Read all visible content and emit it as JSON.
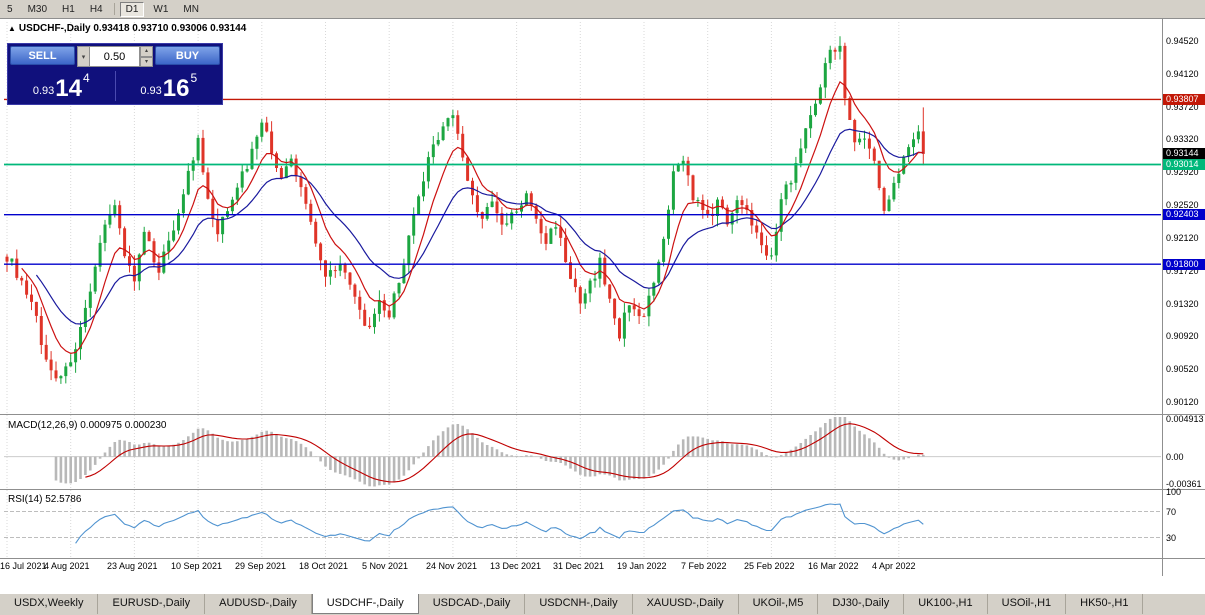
{
  "toolbar": {
    "timeframes": [
      {
        "label": "5"
      },
      {
        "label": "M30"
      },
      {
        "label": "H1"
      },
      {
        "label": "H4"
      },
      {
        "label": "D1"
      },
      {
        "label": "W1"
      },
      {
        "label": "MN"
      }
    ],
    "active_index": 4
  },
  "chart_header": {
    "text": "USDCHF-,Daily 0.93418 0.93710 0.93006 0.93144"
  },
  "trade_panel": {
    "sell_label": "SELL",
    "buy_label": "BUY",
    "volume": "0.50",
    "sell_price_prefix": "0.93",
    "sell_price_big": "14",
    "sell_price_sup": "4",
    "buy_price_prefix": "0.93",
    "buy_price_big": "16",
    "buy_price_sup": "5"
  },
  "chart_data": {
    "type": "candlestick",
    "symbol": "USDCHF-",
    "timeframe": "Daily",
    "ohlc": {
      "open": "0.93418",
      "high": "0.93710",
      "low": "0.93006",
      "close": "0.93144"
    },
    "bars": 188,
    "ylim": [
      0.9,
      0.9475
    ],
    "y_ticks": [
      "0.94520",
      "0.94120",
      "0.93720",
      "0.93320",
      "0.92920",
      "0.92520",
      "0.92120",
      "0.91720",
      "0.91320",
      "0.90920",
      "0.90520",
      "0.90120"
    ],
    "x_tick_labels": [
      "16 Jul 2021",
      "4 Aug 2021",
      "23 Aug 2021",
      "10 Sep 2021",
      "29 Sep 2021",
      "18 Oct 2021",
      "5 Nov 2021",
      "24 Nov 2021",
      "13 Dec 2021",
      "31 Dec 2021",
      "19 Jan 2022",
      "7 Feb 2022",
      "25 Feb 2022",
      "16 Mar 2022",
      "4 Apr 2022"
    ],
    "x_ticks_bar_interval": 13,
    "price_anchors": [
      [
        0,
        0.919
      ],
      [
        2,
        0.917
      ],
      [
        4,
        0.914
      ],
      [
        6,
        0.9115
      ],
      [
        8,
        0.906
      ],
      [
        10,
        0.9045
      ],
      [
        12,
        0.905
      ],
      [
        14,
        0.908
      ],
      [
        17,
        0.914
      ],
      [
        20,
        0.9235
      ],
      [
        22,
        0.925
      ],
      [
        24,
        0.9195
      ],
      [
        26,
        0.916
      ],
      [
        28,
        0.9215
      ],
      [
        31,
        0.9175
      ],
      [
        34,
        0.9225
      ],
      [
        37,
        0.929
      ],
      [
        39,
        0.9328
      ],
      [
        41,
        0.9255
      ],
      [
        43,
        0.9215
      ],
      [
        46,
        0.9265
      ],
      [
        49,
        0.93
      ],
      [
        52,
        0.9358
      ],
      [
        54,
        0.9315
      ],
      [
        56,
        0.9285
      ],
      [
        58,
        0.9305
      ],
      [
        61,
        0.9255
      ],
      [
        63,
        0.921
      ],
      [
        65,
        0.9165
      ],
      [
        68,
        0.9185
      ],
      [
        71,
        0.9135
      ],
      [
        74,
        0.9098
      ],
      [
        76,
        0.913
      ],
      [
        78,
        0.9118
      ],
      [
        80,
        0.916
      ],
      [
        83,
        0.9235
      ],
      [
        86,
        0.9305
      ],
      [
        89,
        0.9352
      ],
      [
        91,
        0.9362
      ],
      [
        93,
        0.931
      ],
      [
        95,
        0.9262
      ],
      [
        97,
        0.9235
      ],
      [
        99,
        0.9255
      ],
      [
        101,
        0.9225
      ],
      [
        104,
        0.9245
      ],
      [
        106,
        0.9262
      ],
      [
        108,
        0.9235
      ],
      [
        110,
        0.9205
      ],
      [
        112,
        0.9232
      ],
      [
        114,
        0.9185
      ],
      [
        117,
        0.9128
      ],
      [
        119,
        0.9155
      ],
      [
        121,
        0.9182
      ],
      [
        123,
        0.9135
      ],
      [
        125,
        0.9095
      ],
      [
        127,
        0.9135
      ],
      [
        130,
        0.9115
      ],
      [
        132,
        0.9155
      ],
      [
        134,
        0.9205
      ],
      [
        136,
        0.9288
      ],
      [
        138,
        0.9312
      ],
      [
        140,
        0.9262
      ],
      [
        143,
        0.9235
      ],
      [
        145,
        0.9255
      ],
      [
        147,
        0.9232
      ],
      [
        149,
        0.9262
      ],
      [
        151,
        0.9242
      ],
      [
        153,
        0.9222
      ],
      [
        156,
        0.9185
      ],
      [
        158,
        0.9262
      ],
      [
        160,
        0.9285
      ],
      [
        162,
        0.9322
      ],
      [
        164,
        0.9362
      ],
      [
        166,
        0.9402
      ],
      [
        168,
        0.9438
      ],
      [
        170,
        0.945
      ],
      [
        171,
        0.9388
      ],
      [
        173,
        0.9325
      ],
      [
        175,
        0.9335
      ],
      [
        177,
        0.9302
      ],
      [
        179,
        0.9245
      ],
      [
        181,
        0.9285
      ],
      [
        183,
        0.9308
      ],
      [
        185,
        0.9338
      ],
      [
        186,
        0.929
      ],
      [
        187,
        0.93144
      ]
    ],
    "last_candle": {
      "o": 0.93418,
      "h": 0.9371,
      "l": 0.93006,
      "c": 0.93144
    },
    "levels": [
      {
        "price": 0.93807,
        "label": "0.93807",
        "color": "#c21807",
        "line": true,
        "width": 1.4
      },
      {
        "price": 0.93144,
        "label": "0.93144",
        "color": "#000000",
        "line": false,
        "width": 1
      },
      {
        "price": 0.93014,
        "label": "0.93014",
        "color": "#00b87a",
        "line": true,
        "width": 1.8
      },
      {
        "price": 0.92403,
        "label": "0.92403",
        "color": "#0000cc",
        "line": true,
        "width": 1.4
      },
      {
        "price": 0.918,
        "label": "0.91800",
        "color": "#0000cc",
        "line": true,
        "width": 1.4
      }
    ],
    "indicators": [
      {
        "type": "ma",
        "name": "fast",
        "period": 8
      },
      {
        "type": "ma",
        "name": "slow",
        "period": 20
      }
    ],
    "macd": {
      "header": "MACD(12,26,9) 0.000975 0.000230",
      "fast": 12,
      "slow": 26,
      "signal": 9,
      "values": [
        "0.000975",
        "0.000230"
      ],
      "y_ticks": [
        "0.004913",
        "0.00",
        "-0.00361"
      ],
      "ylim": [
        -0.004,
        0.0052
      ]
    },
    "rsi": {
      "header": "RSI(14) 52.5786",
      "period": 14,
      "value": "52.5786",
      "levels": [
        70,
        30
      ],
      "y_ticks": [
        "100",
        "70",
        "30"
      ]
    }
  },
  "tabs": {
    "items": [
      "USDX,Weekly",
      "EURUSD-,Daily",
      "AUDUSD-,Daily",
      "USDCHF-,Daily",
      "USDCAD-,Daily",
      "USDCNH-,Daily",
      "XAUUSD-,Daily",
      "UKOil-,M5",
      "DJ30-,Daily",
      "UK100-,H1",
      "USOil-,H1",
      "HK50-,H1"
    ],
    "active_index": 3
  },
  "colors": {
    "candle_up": "#1ca641",
    "candle_down": "#df3428",
    "ma_fast": "#cc1111",
    "ma_slow": "#1a1a9e",
    "macd_histogram": "#b8b8b8",
    "macd_signal": "#c00000",
    "rsi_line": "#4f93d0",
    "grid": "#d8d8d8"
  }
}
